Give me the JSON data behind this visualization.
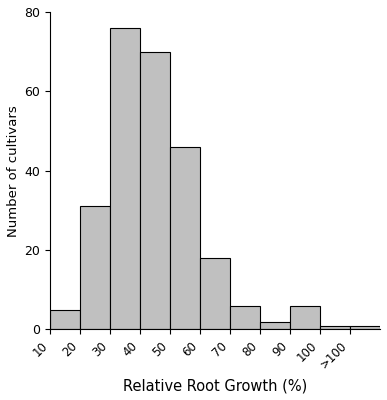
{
  "bin_edges": [
    10,
    20,
    30,
    40,
    50,
    60,
    70,
    80,
    90,
    100,
    110
  ],
  "tick_labels": [
    "10",
    "20",
    "30",
    "40",
    "50",
    "60",
    "70",
    "80",
    "90",
    "100",
    ">100"
  ],
  "values": [
    5,
    31,
    76,
    70,
    46,
    18,
    6,
    2,
    6,
    1,
    1
  ],
  "bar_color": "#c0c0c0",
  "bar_edgecolor": "#000000",
  "ylabel": "Number of cultivars",
  "xlabel": "Relative Root Growth (%)",
  "ylim": [
    0,
    80
  ],
  "yticks": [
    0,
    20,
    40,
    60,
    80
  ],
  "figsize": [
    3.87,
    4.0
  ],
  "dpi": 100,
  "bar_linewidth": 0.8
}
